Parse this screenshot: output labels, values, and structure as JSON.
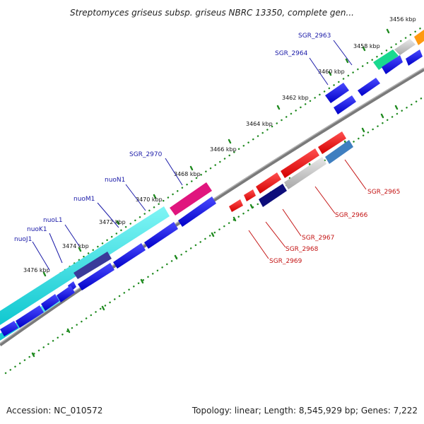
{
  "title": "Streptomyces griseus subsp. griseus NBRC 13350, complete gen...",
  "footer": {
    "accession": "Accession: NC_010572",
    "summary": "Topology: linear; Length: 8,545,929 bp; Genes: 7,222"
  },
  "ticks": [
    "3456 kbp",
    "3458 kbp",
    "3460 kbp",
    "3462 kbp",
    "3464 kbp",
    "3466 kbp",
    "3468 kbp",
    "3470 kbp",
    "3472 kbp",
    "3474 kbp",
    "3476 kbp"
  ],
  "labels_forward": [
    "SGR_2963",
    "SGR_2964",
    "SGR_2970",
    "nuoN1",
    "nuoM1",
    "nuoL1",
    "nuoK1",
    "nuoJ1"
  ],
  "labels_reverse": [
    "SGR_2965",
    "SGR_2966",
    "SGR_2967",
    "SGR_2968",
    "SGR_2969"
  ],
  "colors": {
    "backbone": "#7a7a7a",
    "tick": "#1f8a1f",
    "cds_blue": "#1010e0",
    "cds_cyan": "#19e0e0",
    "cds_magenta": "#e0157e",
    "cds_green": "#19d98f",
    "cds_gray": "#bdbdbd",
    "cds_orange": "#ff9a10",
    "cds_red": "#ee1111",
    "cds_steel": "#3f7fc0",
    "cds_navy": "#0d0d7a",
    "cds_slate": "#3a3a9a"
  }
}
